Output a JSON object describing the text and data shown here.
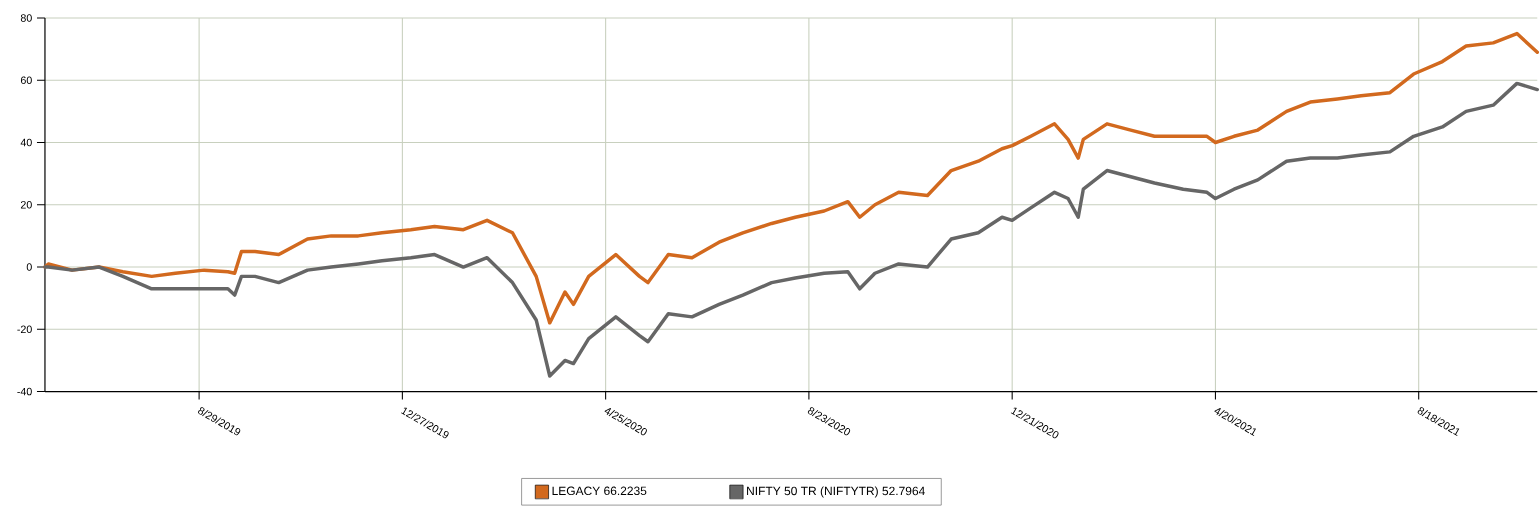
{
  "chart_data": {
    "type": "line",
    "x": [
      "2019-05-30",
      "2019-06-01",
      "2019-06-15",
      "2019-07-01",
      "2019-07-15",
      "2019-08-01",
      "2019-08-15",
      "2019-09-01",
      "2019-09-15",
      "2019-09-19",
      "2019-09-23",
      "2019-10-01",
      "2019-10-15",
      "2019-11-01",
      "2019-11-15",
      "2019-12-01",
      "2019-12-15",
      "2020-01-01",
      "2020-01-15",
      "2020-02-01",
      "2020-02-15",
      "2020-03-01",
      "2020-03-15",
      "2020-03-23",
      "2020-04-01",
      "2020-04-06",
      "2020-04-15",
      "2020-05-01",
      "2020-05-15",
      "2020-05-20",
      "2020-06-01",
      "2020-06-15",
      "2020-07-01",
      "2020-07-15",
      "2020-08-01",
      "2020-08-15",
      "2020-09-01",
      "2020-09-15",
      "2020-09-22",
      "2020-10-01",
      "2020-10-15",
      "2020-11-01",
      "2020-11-15",
      "2020-12-01",
      "2020-12-15",
      "2020-12-21",
      "2021-01-01",
      "2021-01-15",
      "2021-01-23",
      "2021-01-29",
      "2021-02-01",
      "2021-02-15",
      "2021-03-01",
      "2021-03-15",
      "2021-04-01",
      "2021-04-15",
      "2021-04-20",
      "2021-05-01",
      "2021-05-15",
      "2021-06-01",
      "2021-06-15",
      "2021-07-01",
      "2021-07-15",
      "2021-08-01",
      "2021-08-15",
      "2021-09-01",
      "2021-09-15",
      "2021-10-01",
      "2021-10-15",
      "2021-10-27"
    ],
    "series": [
      {
        "name": "LEGACY 66.2235",
        "color": "#d2691e",
        "values": [
          0,
          1,
          -1,
          0,
          -1.5,
          -3,
          -2,
          -1,
          -1.5,
          -2,
          5,
          5,
          4,
          9,
          10,
          10,
          11,
          12,
          13,
          12,
          15,
          11,
          -3,
          -18,
          -8,
          -12,
          -3,
          4,
          -3,
          -5,
          4,
          3,
          8,
          11,
          14,
          16,
          18,
          21,
          16,
          20,
          24,
          23,
          31,
          34,
          38,
          39,
          42,
          46,
          41,
          35,
          41,
          46,
          44,
          42,
          42,
          42,
          40,
          42,
          44,
          50,
          53,
          54,
          55,
          56,
          62,
          66,
          71,
          72,
          75,
          69
        ]
      },
      {
        "name": "NIFTY 50 TR (NIFTYTR) 52.7964",
        "color": "#666666",
        "values": [
          0,
          0,
          -1,
          0,
          -3,
          -7,
          -7,
          -7,
          -7,
          -9,
          -3,
          -3,
          -5,
          -1,
          0,
          1,
          2,
          3,
          4,
          0,
          3,
          -5,
          -17,
          -35,
          -30,
          -31,
          -23,
          -16,
          -22,
          -24,
          -15,
          -16,
          -12,
          -9,
          -5,
          -3.5,
          -2,
          -1.5,
          -7,
          -2,
          1,
          0,
          9,
          11,
          16,
          15,
          19,
          24,
          22,
          16,
          25,
          31,
          29,
          27,
          25,
          24,
          22,
          25,
          28,
          34,
          35,
          35,
          36,
          37,
          42,
          45,
          50,
          52,
          59,
          57
        ]
      }
    ],
    "xlim": [
      "2019-05-30",
      "2021-10-27"
    ],
    "xticks": [
      {
        "value": "2019-08-29",
        "label": "8/29/2019"
      },
      {
        "value": "2019-12-27",
        "label": "12/27/2019"
      },
      {
        "value": "2020-04-25",
        "label": "4/25/2020"
      },
      {
        "value": "2020-08-23",
        "label": "8/23/2020"
      },
      {
        "value": "2020-12-21",
        "label": "12/21/2020"
      },
      {
        "value": "2021-04-20",
        "label": "4/20/2021"
      },
      {
        "value": "2021-08-18",
        "label": "8/18/2021"
      }
    ],
    "ylim": [
      -40,
      80
    ],
    "yticks": [
      -40,
      -20,
      0,
      20,
      40,
      60,
      80
    ],
    "grid": true,
    "legend": "bottom",
    "line_style": "solid"
  }
}
